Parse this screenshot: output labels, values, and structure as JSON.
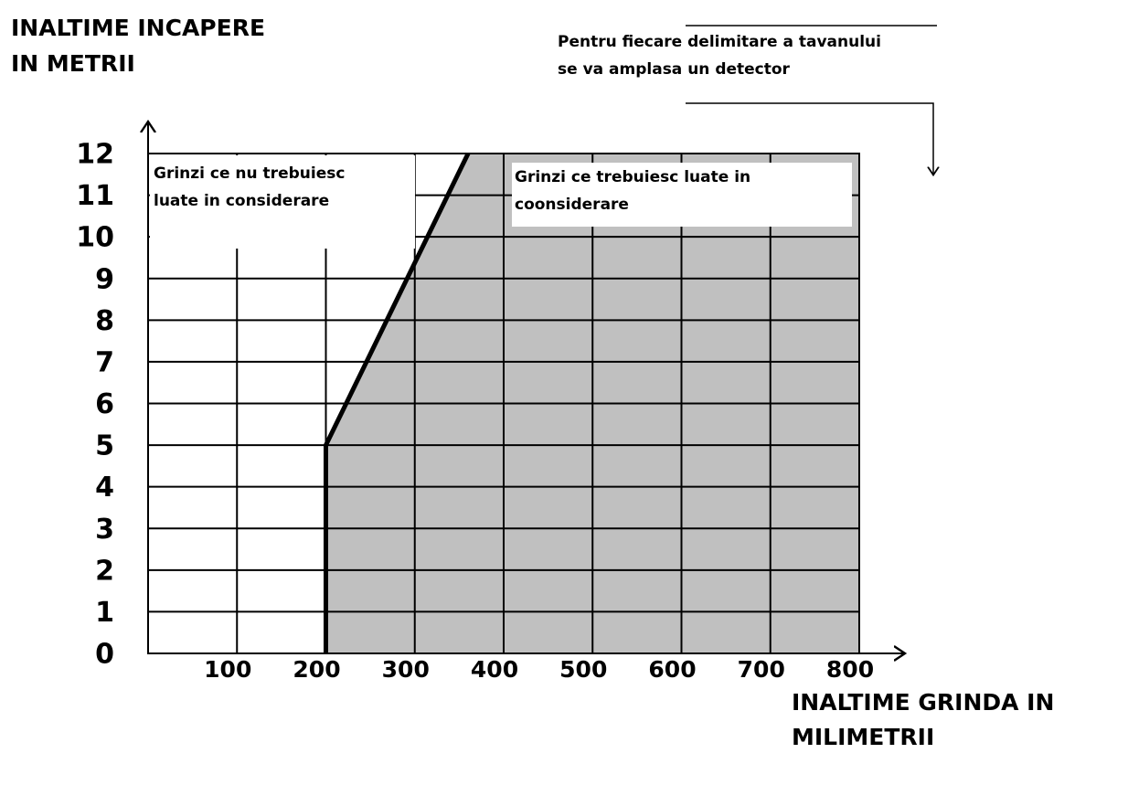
{
  "chart_data": {
    "type": "line",
    "y_title": [
      "INALTIME INCAPERE",
      "IN METRII"
    ],
    "x_title": [
      "INALTIME GRINDA IN",
      "MILIMETRII"
    ],
    "note": [
      "Pentru fiecare delimitare a tavanului",
      "se va amplasa un detector"
    ],
    "region_left": [
      "Grinzi ce nu trebuiesc",
      "luate in considerare"
    ],
    "region_right": [
      "Grinzi ce trebuiesc luate in",
      "coonsiderare"
    ],
    "series": [
      {
        "color": "#000000",
        "x": [
          200,
          200,
          360
        ],
        "values": [
          0,
          5,
          12
        ]
      }
    ],
    "fill_color": "#c0c0c0",
    "xlim": [
      0,
      800
    ],
    "xticks": [
      100,
      200,
      300,
      400,
      500,
      600,
      700,
      800
    ],
    "ylim": [
      0,
      12
    ],
    "yticks": [
      0,
      1,
      2,
      3,
      4,
      5,
      6,
      7,
      8,
      9,
      10,
      11,
      12
    ],
    "grid": true
  }
}
